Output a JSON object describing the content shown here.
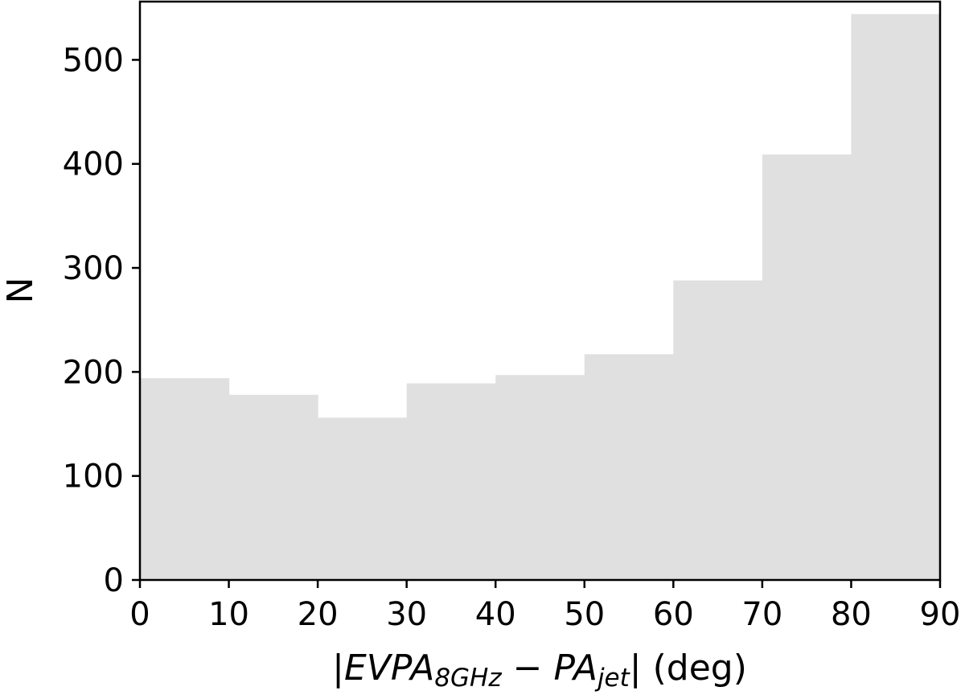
{
  "chart_data": {
    "type": "bar",
    "subtype": "histogram",
    "bin_edges": [
      0,
      10,
      20,
      30,
      40,
      50,
      60,
      70,
      80,
      90
    ],
    "values": [
      194,
      178,
      156,
      189,
      197,
      217,
      288,
      409,
      544
    ],
    "xlim": [
      0,
      90
    ],
    "ylim": [
      0,
      556
    ],
    "xticks": [
      "0",
      "10",
      "20",
      "30",
      "40",
      "50",
      "60",
      "70",
      "80",
      "90"
    ],
    "yticks": [
      "0",
      "100",
      "200",
      "300",
      "400",
      "500"
    ],
    "xlabel": {
      "open": "|",
      "main1": "EVPA",
      "sub1": "8GHz",
      "minus": " − ",
      "main2": "PA",
      "sub2": "jet",
      "close": "| (deg)"
    },
    "ylabel": "N",
    "colors": {
      "bar": "#e0e0e0",
      "axis": "#000000"
    },
    "grid": false
  }
}
